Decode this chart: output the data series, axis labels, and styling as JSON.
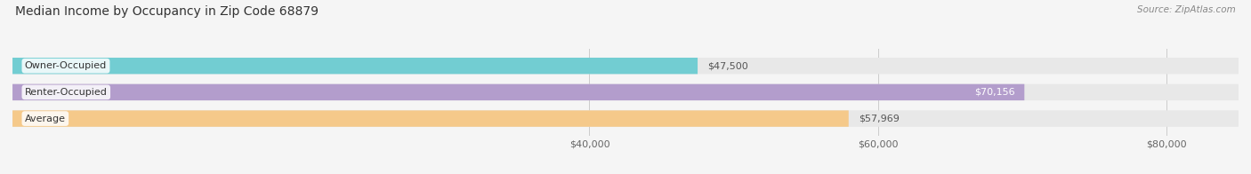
{
  "title": "Median Income by Occupancy in Zip Code 68879",
  "source": "Source: ZipAtlas.com",
  "categories": [
    "Owner-Occupied",
    "Renter-Occupied",
    "Average"
  ],
  "values": [
    47500,
    70156,
    57969
  ],
  "bar_colors": [
    "#72cdd2",
    "#b39dcc",
    "#f5c98a"
  ],
  "bar_bg_color": "#e8e8e8",
  "value_labels": [
    "$47,500",
    "$70,156",
    "$57,969"
  ],
  "value_label_inside": [
    false,
    true,
    false
  ],
  "x_ticks": [
    40000,
    60000,
    80000
  ],
  "x_tick_labels": [
    "$40,000",
    "$60,000",
    "$80,000"
  ],
  "xmin": 0,
  "xmax": 85000,
  "title_fontsize": 10,
  "source_fontsize": 7.5,
  "bar_fontsize": 8,
  "tick_fontsize": 8,
  "background_color": "#f5f5f5",
  "bar_area_color": "#f5f5f5"
}
